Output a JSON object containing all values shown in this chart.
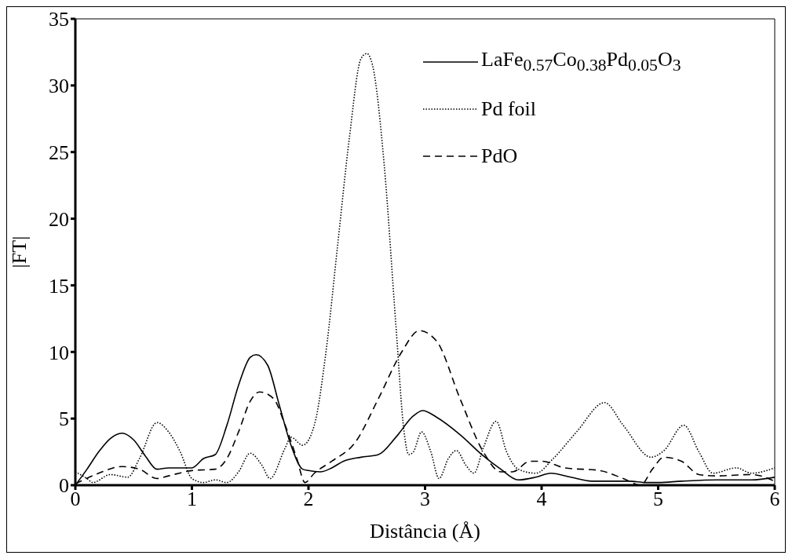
{
  "chart_data": {
    "type": "line",
    "xlabel": "Distância (Å)",
    "ylabel": "|FT|",
    "xlim": [
      0,
      6
    ],
    "ylim": [
      0,
      35
    ],
    "xticks": [
      0,
      1,
      2,
      3,
      4,
      5,
      6
    ],
    "yticks": [
      0,
      5,
      10,
      15,
      20,
      25,
      30,
      35
    ],
    "grid": false,
    "legend": "top right",
    "marker": "none",
    "series": [
      {
        "name": "LaFe$_{0.57}$Co$_{0.38}$Pd$_{0.05}$O$_{3}$",
        "color": "#000000",
        "line_style": "solid",
        "x": [
          0,
          0.1,
          0.2,
          0.3,
          0.4,
          0.5,
          0.6,
          0.7,
          0.8,
          0.9,
          1.0,
          1.1,
          1.2,
          1.3,
          1.4,
          1.5,
          1.55,
          1.65,
          1.75,
          1.85,
          1.95,
          2.0,
          2.1,
          2.2,
          2.3,
          2.45,
          2.6,
          2.75,
          2.9,
          2.98,
          3.1,
          3.3,
          3.5,
          3.65,
          3.8,
          3.95,
          4.08,
          4.25,
          4.43,
          4.6,
          4.75,
          4.9,
          5.0,
          5.2,
          5.5,
          5.8,
          6.0
        ],
        "values": [
          0,
          1.2,
          2.5,
          3.5,
          3.9,
          3.4,
          2.2,
          1.2,
          1.3,
          1.3,
          1.3,
          2.0,
          2.3,
          4.5,
          7.5,
          9.6,
          9.8,
          9.0,
          6.0,
          3.0,
          1.2,
          1.1,
          1.0,
          1.3,
          1.8,
          2.1,
          2.3,
          3.6,
          5.2,
          5.6,
          5.1,
          3.8,
          2.2,
          1.2,
          0.4,
          0.6,
          0.9,
          0.6,
          0.3,
          0.3,
          0.3,
          0.2,
          0.2,
          0.3,
          0.4,
          0.4,
          0.6
        ]
      },
      {
        "name": "Pd foil",
        "color": "#000000",
        "line_style": "dotted",
        "x": [
          0,
          0.1,
          0.15,
          0.3,
          0.45,
          0.55,
          0.7,
          0.8,
          0.9,
          1.0,
          1.1,
          1.2,
          1.3,
          1.4,
          1.5,
          1.6,
          1.67,
          1.8,
          1.85,
          1.95,
          2.05,
          2.15,
          2.25,
          2.35,
          2.45,
          2.5,
          2.55,
          2.65,
          2.75,
          2.82,
          2.86,
          2.9,
          2.97,
          3.05,
          3.12,
          3.2,
          3.27,
          3.35,
          3.42,
          3.5,
          3.61,
          3.7,
          3.8,
          3.95,
          4.1,
          4.3,
          4.54,
          4.7,
          4.94,
          5.05,
          5.22,
          5.35,
          5.47,
          5.67,
          5.8,
          6.0
        ],
        "values": [
          1.0,
          0.5,
          0.2,
          0.8,
          0.6,
          2.0,
          4.7,
          4.0,
          2.5,
          0.5,
          0.2,
          0.4,
          0.2,
          1.0,
          2.4,
          1.5,
          0.5,
          2.8,
          3.6,
          3.0,
          4.5,
          10,
          18,
          26,
          32.0,
          32.4,
          31.5,
          24,
          12,
          4,
          2.3,
          2.5,
          4.0,
          2.5,
          0.5,
          2.0,
          2.6,
          1.5,
          0.9,
          2.8,
          4.8,
          2.5,
          1.2,
          0.9,
          2.0,
          4.0,
          6.2,
          4.5,
          2.1,
          2.6,
          4.5,
          2.5,
          0.9,
          1.3,
          0.9,
          1.3
        ]
      },
      {
        "name": "PdO",
        "color": "#000000",
        "line_style": "dashed",
        "x": [
          0,
          0.2,
          0.4,
          0.55,
          0.7,
          0.8,
          1.0,
          1.2,
          1.3,
          1.4,
          1.5,
          1.58,
          1.7,
          1.8,
          1.9,
          1.97,
          2.05,
          2.2,
          2.4,
          2.6,
          2.8,
          2.95,
          3.1,
          3.3,
          3.5,
          3.65,
          3.75,
          3.9,
          4.0,
          4.2,
          4.5,
          4.7,
          4.85,
          4.95,
          5.05,
          5.2,
          5.35,
          5.5,
          5.8,
          6.0
        ],
        "values": [
          0.1,
          0.9,
          1.4,
          1.2,
          0.5,
          0.7,
          1.1,
          1.2,
          2.0,
          4.0,
          6.3,
          7.0,
          6.5,
          4.5,
          2.0,
          0.2,
          0.9,
          1.8,
          3.2,
          6.5,
          10,
          11.6,
          10.8,
          6.5,
          2.5,
          1.0,
          1.0,
          1.8,
          1.8,
          1.3,
          1.1,
          0.5,
          0.0,
          1.2,
          2.1,
          1.8,
          0.8,
          0.7,
          0.8,
          0.3
        ]
      }
    ]
  }
}
